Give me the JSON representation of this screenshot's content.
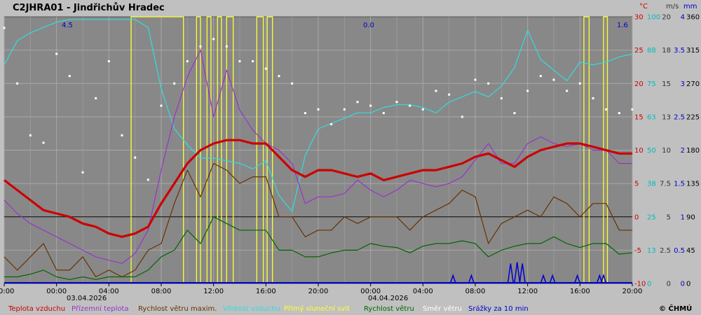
{
  "chart_data": {
    "type": "line",
    "title": "C2JHRA01 - Jindřichův Hradec",
    "copyright": "© ČHMÚ",
    "dates": {
      "d1": "03.04.2026",
      "d2": "04.04.2026"
    },
    "x_tick_labels": [
      "20:00",
      "00:00",
      "04:00",
      "08:00",
      "12:00",
      "16:00",
      "20:00",
      "00:00",
      "04:00",
      "08:00",
      "12:00",
      "16:00",
      "20:00"
    ],
    "top_values": {
      "left": "4.5",
      "mid": "0.0",
      "right": "1.6"
    },
    "axes": {
      "temp": {
        "unit": "°C",
        "color": "#cc0000",
        "ticks": [
          "30",
          "25",
          "20",
          "15",
          "10",
          "5",
          "0",
          "-5",
          "-10"
        ]
      },
      "humidity": {
        "unit": "",
        "color": "#00bbbb",
        "ticks": [
          "100",
          "88",
          "75",
          "63",
          "50",
          "38",
          "25",
          "13",
          "0"
        ]
      },
      "wind": {
        "unit": "m/s",
        "color": "#333333",
        "ticks": [
          "20",
          "18",
          "15",
          "13",
          "10",
          "7.5",
          "5",
          "2.5",
          "0"
        ]
      },
      "precip": {
        "unit": "mm",
        "color": "#0000cc",
        "ticks": [
          "4",
          "3.5",
          "3",
          "2.5",
          "2",
          "1.5",
          "1",
          "0.5",
          "0"
        ]
      },
      "direction": {
        "unit": "",
        "color": "#000000",
        "ticks": [
          "360",
          "315",
          "270",
          "225",
          "180",
          "135",
          "90",
          "45",
          "0"
        ]
      }
    },
    "ylim": {
      "temp": [
        -10,
        30
      ],
      "humidity": [
        0,
        100
      ],
      "wind": [
        0,
        20
      ],
      "precip": [
        0,
        4
      ],
      "direction": [
        0,
        360
      ]
    },
    "legend": [
      {
        "label": "Teplota vzduchu",
        "color": "#cc0000"
      },
      {
        "label": "Přízemní teplota",
        "color": "#9933cc"
      },
      {
        "label": "Rychlost větru maxim.",
        "color": "#663300"
      },
      {
        "label": "Vlhkost vzduchu",
        "color": "#33dddd"
      },
      {
        "label": "Přímý sluneční svit",
        "color": "#ffff33"
      },
      {
        "label": "Rychlost větru",
        "color": "#006600"
      },
      {
        "label": "Směr větru",
        "color": "#ffffff"
      },
      {
        "label": "Srážky za 10 min",
        "color": "#0000cc"
      }
    ],
    "series": [
      {
        "name": "Teplota vzduchu",
        "axis": "temp",
        "color": "#cc0000",
        "x": [
          -4,
          -3,
          -2,
          -1,
          0,
          1,
          2,
          3,
          4,
          5,
          6,
          7,
          8,
          9,
          10,
          11,
          12,
          13,
          14,
          15,
          16,
          17,
          18,
          19,
          20,
          21,
          22,
          23,
          24,
          25,
          26,
          27,
          28,
          29,
          30,
          31,
          32,
          33,
          34,
          35,
          36,
          37,
          38,
          39,
          40,
          41,
          42,
          43,
          44
        ],
        "y": [
          5.5,
          4,
          2.5,
          1,
          0.5,
          0,
          -1,
          -1.5,
          -2.5,
          -3,
          -2.5,
          -1.5,
          2,
          5,
          8,
          10,
          11,
          11.5,
          11.5,
          11,
          11,
          9,
          7,
          6,
          7,
          7,
          6.5,
          6,
          6.5,
          5.5,
          6,
          6.5,
          7,
          7,
          7.5,
          8,
          9,
          9.5,
          8.5,
          7.5,
          9,
          10,
          10.5,
          11,
          11,
          10.5,
          10,
          9.5,
          9.5
        ]
      },
      {
        "name": "Přízemní teplota",
        "axis": "temp",
        "color": "#9933cc",
        "x": [
          -4,
          -3,
          -2,
          -1,
          0,
          1,
          2,
          3,
          4,
          5,
          6,
          7,
          8,
          9,
          10,
          11,
          12,
          13,
          14,
          15,
          16,
          17,
          18,
          19,
          20,
          21,
          22,
          23,
          24,
          25,
          26,
          27,
          28,
          29,
          30,
          31,
          32,
          33,
          34,
          35,
          36,
          37,
          38,
          39,
          40,
          41,
          42,
          43,
          44
        ],
        "y": [
          2.5,
          0.5,
          -1,
          -2,
          -3,
          -4,
          -5,
          -6,
          -6.5,
          -7,
          -5.5,
          -2,
          7,
          15,
          21,
          25,
          15,
          22,
          16,
          13,
          11,
          10,
          8,
          2,
          3,
          3,
          3.5,
          5.5,
          4,
          3,
          4,
          5.5,
          5,
          4.5,
          5,
          6,
          8.5,
          11,
          8,
          8,
          11,
          12,
          11,
          10.5,
          11,
          10,
          10,
          8,
          8
        ]
      },
      {
        "name": "Vlhkost vzduchu",
        "axis": "humidity",
        "color": "#33dddd",
        "x": [
          -4,
          -3,
          -2,
          -1,
          0,
          1,
          2,
          3,
          4,
          5,
          6,
          7,
          8,
          9,
          10,
          11,
          12,
          13,
          14,
          15,
          16,
          17,
          18,
          19,
          20,
          21,
          22,
          23,
          24,
          25,
          26,
          27,
          28,
          29,
          30,
          31,
          32,
          33,
          34,
          35,
          36,
          37,
          38,
          39,
          40,
          41,
          42,
          43,
          44
        ],
        "y": [
          82,
          91,
          94,
          96,
          98,
          99,
          99,
          99,
          99,
          99,
          99,
          96,
          73,
          58,
          52,
          47,
          47,
          46,
          45,
          43,
          46,
          33,
          27,
          48,
          58,
          60,
          62,
          64,
          64,
          66,
          67,
          67,
          66,
          64,
          68,
          70,
          72,
          70,
          74,
          81,
          95,
          84,
          80,
          76,
          83,
          82,
          83,
          85,
          86
        ]
      },
      {
        "name": "Rychlost větru maxim.",
        "axis": "wind",
        "color": "#663300",
        "x": [
          -4,
          -3,
          -2,
          -1,
          0,
          1,
          2,
          3,
          4,
          5,
          6,
          7,
          8,
          9,
          10,
          11,
          12,
          13,
          14,
          15,
          16,
          17,
          18,
          19,
          20,
          21,
          22,
          23,
          24,
          25,
          26,
          27,
          28,
          29,
          30,
          31,
          32,
          33,
          34,
          35,
          36,
          37,
          38,
          39,
          40,
          41,
          42,
          43,
          44
        ],
        "y": [
          2,
          1,
          2,
          3,
          1,
          1,
          2,
          0.5,
          1,
          0.5,
          1,
          2.5,
          3,
          6,
          8.5,
          6.5,
          9,
          8.5,
          7.5,
          8,
          8,
          5,
          5,
          3.5,
          4,
          4,
          5,
          4.5,
          5,
          5,
          5,
          4,
          5,
          5.5,
          6,
          7,
          6.5,
          3,
          4.5,
          5,
          5.5,
          5,
          6.5,
          6,
          5,
          6,
          6,
          4,
          4
        ]
      },
      {
        "name": "Rychlost větru",
        "axis": "wind",
        "color": "#006600",
        "x": [
          -4,
          -3,
          -2,
          -1,
          0,
          1,
          2,
          3,
          4,
          5,
          6,
          7,
          8,
          9,
          10,
          11,
          12,
          13,
          14,
          15,
          16,
          17,
          18,
          19,
          20,
          21,
          22,
          23,
          24,
          25,
          26,
          27,
          28,
          29,
          30,
          31,
          32,
          33,
          34,
          35,
          36,
          37,
          38,
          39,
          40,
          41,
          42,
          43,
          44
        ],
        "y": [
          0.5,
          0.5,
          0.7,
          1,
          0.5,
          0.3,
          0.5,
          0.3,
          0.5,
          0.5,
          0.5,
          1,
          2,
          2.5,
          4,
          3,
          5,
          4.5,
          4,
          4,
          4,
          2.5,
          2.5,
          2,
          2,
          2.3,
          2.5,
          2.5,
          3,
          2.8,
          2.7,
          2.3,
          2.8,
          3,
          3,
          3.2,
          3,
          2,
          2.5,
          2.8,
          3,
          3,
          3.5,
          3,
          2.7,
          3,
          3,
          2.2,
          2.3
        ]
      },
      {
        "name": "Směr větru",
        "axis": "direction",
        "color": "#ffffff",
        "x": [
          -4,
          -3,
          -2,
          -1,
          0,
          1,
          2,
          3,
          4,
          5,
          6,
          7,
          8,
          9,
          10,
          11,
          12,
          13,
          14,
          15,
          16,
          17,
          18,
          19,
          20,
          21,
          22,
          23,
          24,
          25,
          26,
          27,
          28,
          29,
          30,
          31,
          32,
          33,
          34,
          35,
          36,
          37,
          38,
          39,
          40,
          41,
          42,
          43,
          44
        ],
        "y": [
          345,
          270,
          200,
          190,
          310,
          280,
          150,
          250,
          300,
          200,
          170,
          140,
          240,
          270,
          300,
          320,
          330,
          320,
          300,
          300,
          290,
          280,
          270,
          230,
          235,
          215,
          235,
          245,
          240,
          230,
          245,
          240,
          235,
          260,
          255,
          225,
          275,
          270,
          250,
          230,
          260,
          280,
          275,
          260,
          270,
          250,
          235,
          230,
          235
        ]
      },
      {
        "name": "Přímý sluneční svit",
        "axis": "sun",
        "color": "#ffff33",
        "segments": [
          [
            5.7,
            9.7
          ],
          [
            10.7,
            11.0
          ],
          [
            11.5,
            11.8
          ],
          [
            12.3,
            12.6
          ],
          [
            13.0,
            13.5
          ],
          [
            15.3,
            15.8
          ],
          [
            16.1,
            16.5
          ],
          [
            40.3,
            40.7
          ],
          [
            41.8,
            42.1
          ]
        ]
      },
      {
        "name": "Srážky za 10 min",
        "axis": "precip",
        "color": "#0000cc",
        "x": [
          30.3,
          31.7,
          34.7,
          35.2,
          35.6,
          37.2,
          37.9,
          39.8,
          41.5,
          41.8
        ],
        "y": [
          0.12,
          0.12,
          0.3,
          0.32,
          0.3,
          0.12,
          0.12,
          0.12,
          0.12,
          0.12
        ]
      }
    ]
  }
}
